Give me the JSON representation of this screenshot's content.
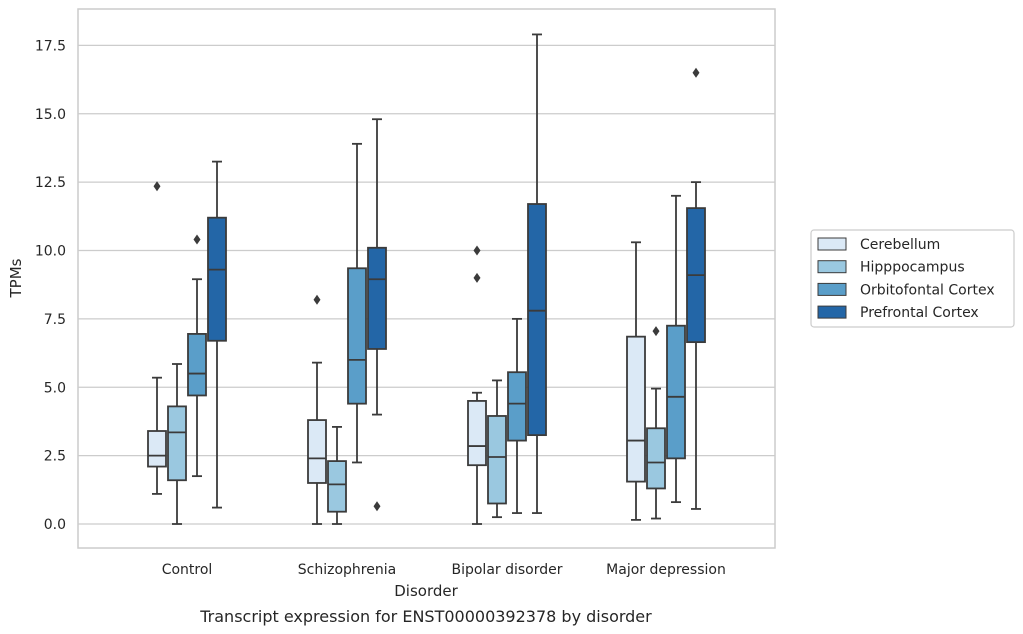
{
  "chart_data": {
    "type": "box",
    "title": "Transcript expression for ENST00000392378 by disorder",
    "xlabel": "Disorder",
    "ylabel": "TPMs",
    "ylim": [
      -0.85,
      18.8
    ],
    "yticks": [
      0.0,
      2.5,
      5.0,
      7.5,
      10.0,
      12.5,
      15.0,
      17.5
    ],
    "ytick_labels": [
      "0.0",
      "2.5",
      "5.0",
      "7.5",
      "10.0",
      "12.5",
      "15.0",
      "17.5"
    ],
    "grid": "horizontal",
    "legend_position": "right",
    "categories": [
      "Control",
      "Schizophrenia",
      "Bipolar disorder",
      "Major depression"
    ],
    "series": [
      {
        "name": "Cerebellum",
        "color": "#dbe9f6",
        "boxes": [
          {
            "whislo": 1.1,
            "q1": 2.1,
            "med": 2.5,
            "q3": 3.4,
            "whishi": 5.35,
            "fliers": [
              12.35
            ]
          },
          {
            "whislo": 0.0,
            "q1": 1.5,
            "med": 2.4,
            "q3": 3.8,
            "whishi": 5.9,
            "fliers": [
              8.2
            ]
          },
          {
            "whislo": 0.0,
            "q1": 2.15,
            "med": 2.85,
            "q3": 4.5,
            "whishi": 4.8,
            "fliers": [
              9.0,
              10.0
            ]
          },
          {
            "whislo": 0.15,
            "q1": 1.55,
            "med": 3.05,
            "q3": 6.85,
            "whishi": 10.3,
            "fliers": []
          }
        ]
      },
      {
        "name": "Hipppocampus",
        "color": "#9ac8e0",
        "boxes": [
          {
            "whislo": 0.0,
            "q1": 1.6,
            "med": 3.35,
            "q3": 4.3,
            "whishi": 5.85,
            "fliers": []
          },
          {
            "whislo": 0.0,
            "q1": 0.45,
            "med": 1.45,
            "q3": 2.3,
            "whishi": 3.55,
            "fliers": []
          },
          {
            "whislo": 0.25,
            "q1": 0.75,
            "med": 2.45,
            "q3": 3.95,
            "whishi": 5.25,
            "fliers": []
          },
          {
            "whislo": 0.2,
            "q1": 1.3,
            "med": 2.25,
            "q3": 3.5,
            "whishi": 4.95,
            "fliers": [
              7.05
            ]
          }
        ]
      },
      {
        "name": "Orbitofontal Cortex",
        "color": "#5a9ec9",
        "boxes": [
          {
            "whislo": 1.75,
            "q1": 4.7,
            "med": 5.5,
            "q3": 6.95,
            "whishi": 8.95,
            "fliers": [
              10.4
            ]
          },
          {
            "whislo": 2.25,
            "q1": 4.4,
            "med": 6.0,
            "q3": 9.35,
            "whishi": 13.9,
            "fliers": []
          },
          {
            "whislo": 0.4,
            "q1": 3.05,
            "med": 4.4,
            "q3": 5.55,
            "whishi": 7.5,
            "fliers": []
          },
          {
            "whislo": 0.8,
            "q1": 2.4,
            "med": 4.65,
            "q3": 7.25,
            "whishi": 12.0,
            "fliers": []
          }
        ]
      },
      {
        "name": "Prefrontal Cortex",
        "color": "#2366a7",
        "boxes": [
          {
            "whislo": 0.6,
            "q1": 6.7,
            "med": 9.3,
            "q3": 11.2,
            "whishi": 13.25,
            "fliers": []
          },
          {
            "whislo": 4.0,
            "q1": 6.4,
            "med": 8.95,
            "q3": 10.1,
            "whishi": 14.8,
            "fliers": [
              0.65
            ]
          },
          {
            "whislo": 0.4,
            "q1": 3.25,
            "med": 7.8,
            "q3": 11.7,
            "whishi": 17.9,
            "fliers": []
          },
          {
            "whislo": 0.55,
            "q1": 6.65,
            "med": 9.1,
            "q3": 11.55,
            "whishi": 12.5,
            "fliers": [
              16.5
            ]
          }
        ]
      }
    ]
  }
}
